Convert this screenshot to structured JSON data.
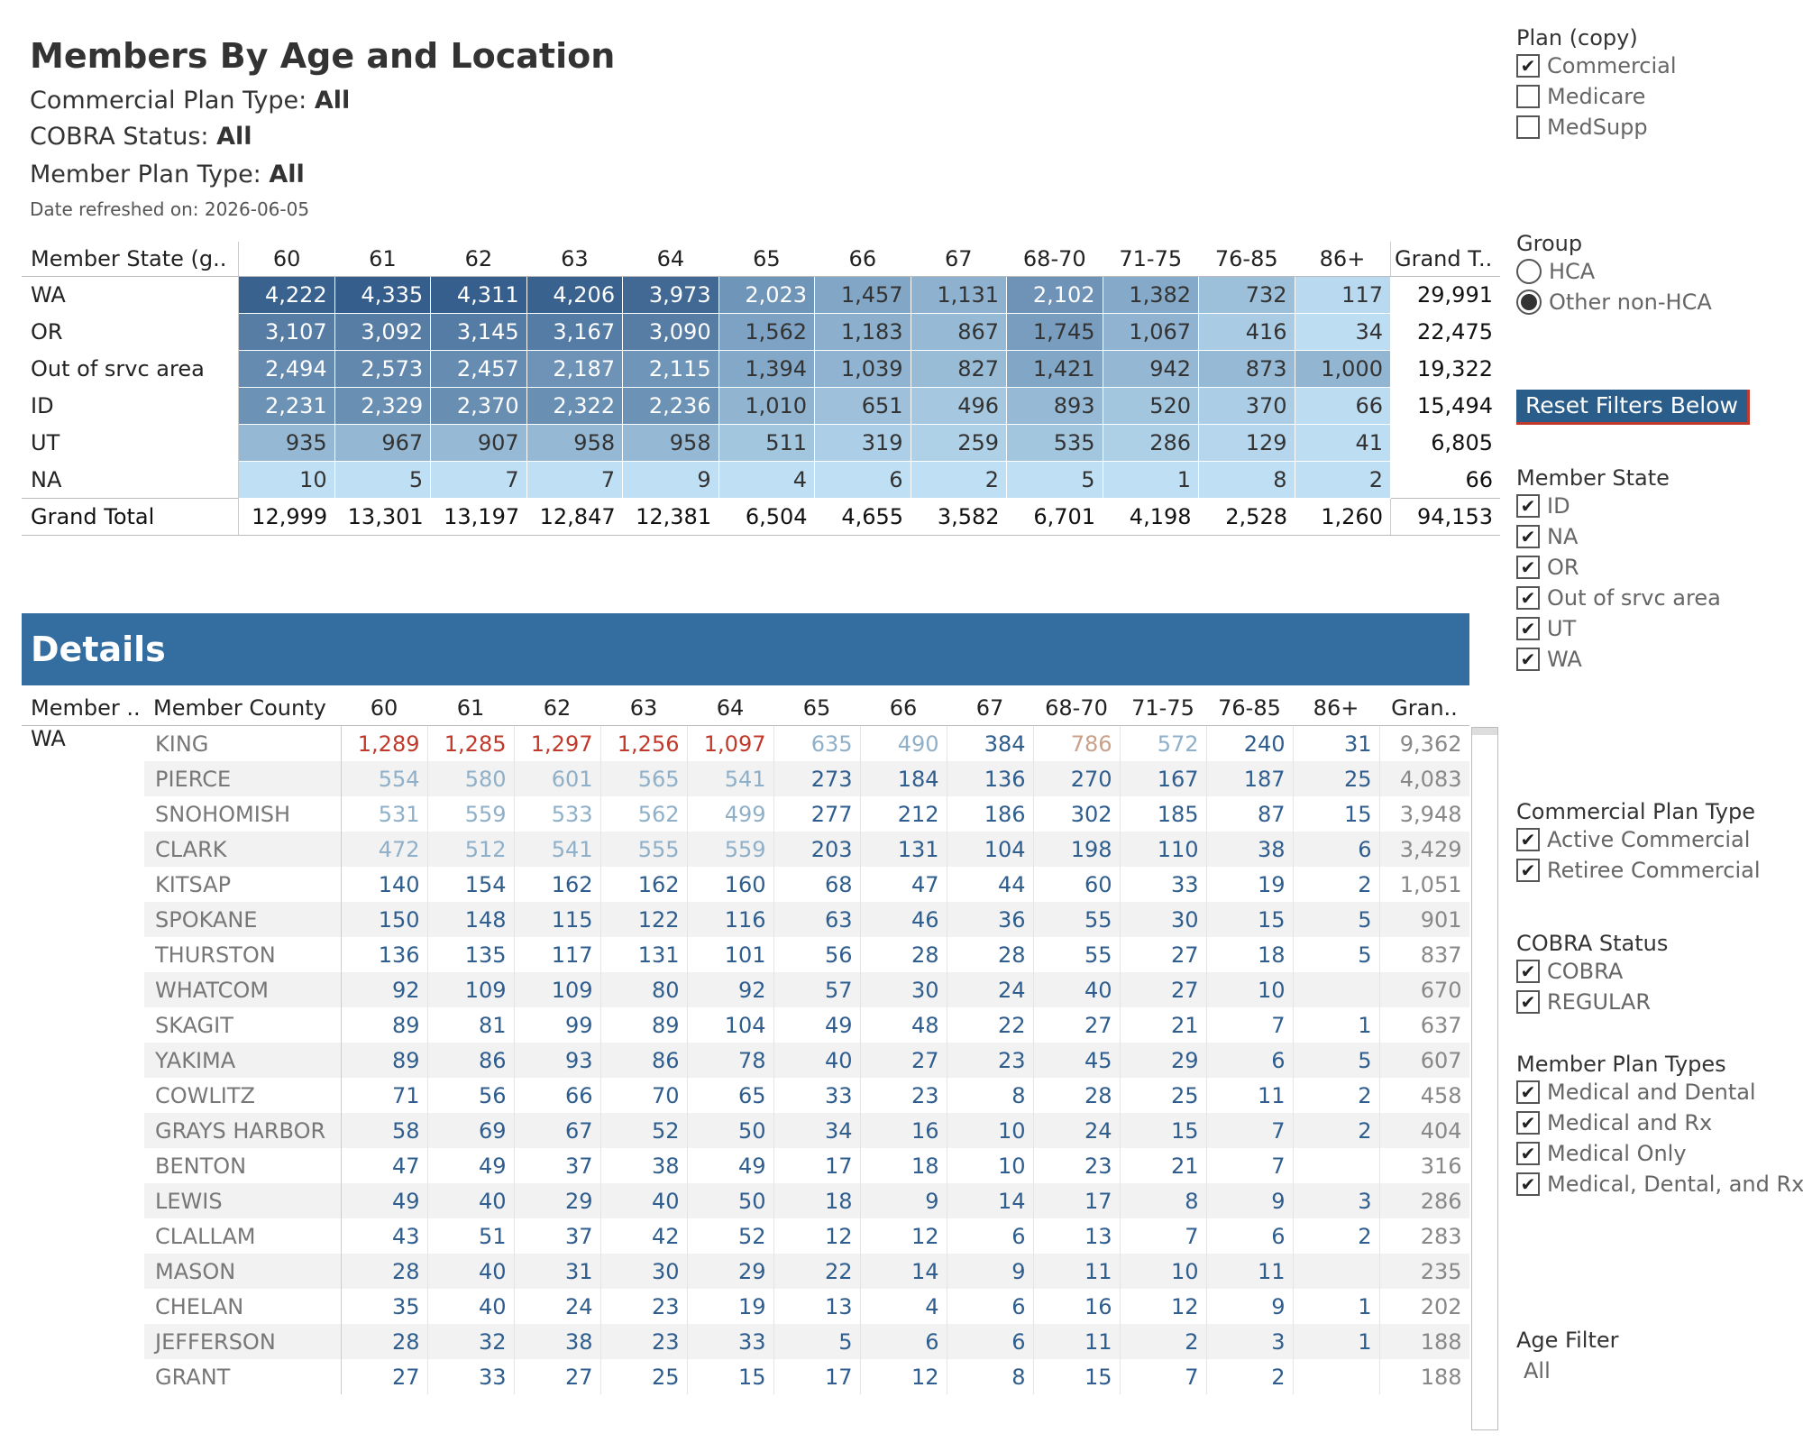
{
  "header": {
    "title": "Members By Age and Location",
    "commercial_plan_label": "Commercial Plan Type:",
    "commercial_plan_value": "All",
    "cobra_label": "COBRA Status:",
    "cobra_value": "All",
    "member_plan_label": "Member Plan Type:",
    "member_plan_value": "All",
    "refreshed": "Date refreshed on: 2026-06-05"
  },
  "colors": {
    "heat_dark": "#2e5786",
    "heat_light": "#bfe0f4",
    "details_header": "#346da0",
    "red_text": "#c0392b",
    "light_blue_text": "#8fb0c8",
    "tan_text": "#c9a08a",
    "blue_text": "#2f5e8e",
    "reset_bg": "#2b5d8a"
  },
  "summary": {
    "row_header": "Member State (g..",
    "columns": [
      "60",
      "61",
      "62",
      "63",
      "64",
      "65",
      "66",
      "67",
      "68-70",
      "71-75",
      "76-85",
      "86+"
    ],
    "grand_total_header": "Grand T..",
    "rows": [
      {
        "label": "WA",
        "values": [
          "4,222",
          "4,335",
          "4,311",
          "4,206",
          "3,973",
          "2,023",
          "1,457",
          "1,131",
          "2,102",
          "1,382",
          "732",
          "117"
        ],
        "total": "29,991",
        "shade": [
          0.92,
          0.95,
          0.94,
          0.92,
          0.87,
          0.55,
          0.42,
          0.34,
          0.56,
          0.4,
          0.24,
          0.05
        ]
      },
      {
        "label": "OR",
        "values": [
          "3,107",
          "3,092",
          "3,145",
          "3,167",
          "3,090",
          "1,562",
          "1,183",
          "867",
          "1,745",
          "1,067",
          "416",
          "34"
        ],
        "total": "22,475",
        "shade": [
          0.72,
          0.72,
          0.73,
          0.73,
          0.72,
          0.45,
          0.36,
          0.28,
          0.49,
          0.33,
          0.15,
          0.02
        ]
      },
      {
        "label": "Out of srvc area",
        "values": [
          "2,494",
          "2,573",
          "2,457",
          "2,187",
          "2,115",
          "1,394",
          "1,039",
          "827",
          "1,421",
          "942",
          "873",
          "1,000"
        ],
        "total": "19,322",
        "shade": [
          0.62,
          0.64,
          0.61,
          0.56,
          0.55,
          0.41,
          0.33,
          0.27,
          0.42,
          0.3,
          0.28,
          0.31
        ]
      },
      {
        "label": "ID",
        "values": [
          "2,231",
          "2,329",
          "2,370",
          "2,322",
          "2,236",
          "1,010",
          "651",
          "496",
          "893",
          "520",
          "370",
          "66"
        ],
        "total": "15,494",
        "shade": [
          0.57,
          0.59,
          0.6,
          0.59,
          0.57,
          0.32,
          0.23,
          0.18,
          0.28,
          0.19,
          0.14,
          0.03
        ]
      },
      {
        "label": "UT",
        "values": [
          "935",
          "967",
          "907",
          "958",
          "958",
          "511",
          "319",
          "259",
          "535",
          "286",
          "129",
          "41"
        ],
        "total": "6,805",
        "shade": [
          0.29,
          0.3,
          0.28,
          0.29,
          0.29,
          0.19,
          0.13,
          0.11,
          0.19,
          0.12,
          0.07,
          0.02
        ]
      },
      {
        "label": "NA",
        "values": [
          "10",
          "5",
          "7",
          "7",
          "9",
          "4",
          "6",
          "2",
          "5",
          "1",
          "8",
          "2"
        ],
        "total": "66",
        "shade": [
          0,
          0,
          0,
          0,
          0,
          0,
          0,
          0,
          0,
          0,
          0,
          0
        ]
      }
    ],
    "grand_total": {
      "label": "Grand Total",
      "values": [
        "12,999",
        "13,301",
        "13,197",
        "12,847",
        "12,381",
        "6,504",
        "4,655",
        "3,582",
        "6,701",
        "4,198",
        "2,528",
        "1,260"
      ],
      "total": "94,153"
    }
  },
  "details": {
    "title": "Details",
    "col_state": "Member ..",
    "col_county": "Member County",
    "columns": [
      "60",
      "61",
      "62",
      "63",
      "64",
      "65",
      "66",
      "67",
      "68-70",
      "71-75",
      "76-85",
      "86+"
    ],
    "grand_total_header": "Gran..",
    "state": "WA",
    "rows": [
      {
        "county": "KING",
        "values": [
          "1,289",
          "1,285",
          "1,297",
          "1,256",
          "1,097",
          "635",
          "490",
          "384",
          "786",
          "572",
          "240",
          "31"
        ],
        "total": "9,362",
        "tone": [
          "r",
          "r",
          "r",
          "r",
          "r",
          "l",
          "l",
          "b",
          "t",
          "l",
          "b",
          "b"
        ]
      },
      {
        "county": "PIERCE",
        "values": [
          "554",
          "580",
          "601",
          "565",
          "541",
          "273",
          "184",
          "136",
          "270",
          "167",
          "187",
          "25"
        ],
        "total": "4,083",
        "tone": [
          "l",
          "l",
          "l",
          "l",
          "l",
          "b",
          "b",
          "b",
          "b",
          "b",
          "b",
          "b"
        ]
      },
      {
        "county": "SNOHOMISH",
        "values": [
          "531",
          "559",
          "533",
          "562",
          "499",
          "277",
          "212",
          "186",
          "302",
          "185",
          "87",
          "15"
        ],
        "total": "3,948",
        "tone": [
          "l",
          "l",
          "l",
          "l",
          "l",
          "b",
          "b",
          "b",
          "b",
          "b",
          "b",
          "b"
        ]
      },
      {
        "county": "CLARK",
        "values": [
          "472",
          "512",
          "541",
          "555",
          "559",
          "203",
          "131",
          "104",
          "198",
          "110",
          "38",
          "6"
        ],
        "total": "3,429",
        "tone": [
          "l",
          "l",
          "l",
          "l",
          "l",
          "b",
          "b",
          "b",
          "b",
          "b",
          "b",
          "b"
        ]
      },
      {
        "county": "KITSAP",
        "values": [
          "140",
          "154",
          "162",
          "162",
          "160",
          "68",
          "47",
          "44",
          "60",
          "33",
          "19",
          "2"
        ],
        "total": "1,051",
        "tone": [
          "b",
          "b",
          "b",
          "b",
          "b",
          "b",
          "b",
          "b",
          "b",
          "b",
          "b",
          "b"
        ]
      },
      {
        "county": "SPOKANE",
        "values": [
          "150",
          "148",
          "115",
          "122",
          "116",
          "63",
          "46",
          "36",
          "55",
          "30",
          "15",
          "5"
        ],
        "total": "901",
        "tone": [
          "b",
          "b",
          "b",
          "b",
          "b",
          "b",
          "b",
          "b",
          "b",
          "b",
          "b",
          "b"
        ]
      },
      {
        "county": "THURSTON",
        "values": [
          "136",
          "135",
          "117",
          "131",
          "101",
          "56",
          "28",
          "28",
          "55",
          "27",
          "18",
          "5"
        ],
        "total": "837",
        "tone": [
          "b",
          "b",
          "b",
          "b",
          "b",
          "b",
          "b",
          "b",
          "b",
          "b",
          "b",
          "b"
        ]
      },
      {
        "county": "WHATCOM",
        "values": [
          "92",
          "109",
          "109",
          "80",
          "92",
          "57",
          "30",
          "24",
          "40",
          "27",
          "10",
          ""
        ],
        "total": "670",
        "tone": [
          "b",
          "b",
          "b",
          "b",
          "b",
          "b",
          "b",
          "b",
          "b",
          "b",
          "b",
          "b"
        ]
      },
      {
        "county": "SKAGIT",
        "values": [
          "89",
          "81",
          "99",
          "89",
          "104",
          "49",
          "48",
          "22",
          "27",
          "21",
          "7",
          "1"
        ],
        "total": "637",
        "tone": [
          "b",
          "b",
          "b",
          "b",
          "b",
          "b",
          "b",
          "b",
          "b",
          "b",
          "b",
          "b"
        ]
      },
      {
        "county": "YAKIMA",
        "values": [
          "89",
          "86",
          "93",
          "86",
          "78",
          "40",
          "27",
          "23",
          "45",
          "29",
          "6",
          "5"
        ],
        "total": "607",
        "tone": [
          "b",
          "b",
          "b",
          "b",
          "b",
          "b",
          "b",
          "b",
          "b",
          "b",
          "b",
          "b"
        ]
      },
      {
        "county": "COWLITZ",
        "values": [
          "71",
          "56",
          "66",
          "70",
          "65",
          "33",
          "23",
          "8",
          "28",
          "25",
          "11",
          "2"
        ],
        "total": "458",
        "tone": [
          "b",
          "b",
          "b",
          "b",
          "b",
          "b",
          "b",
          "b",
          "b",
          "b",
          "b",
          "b"
        ]
      },
      {
        "county": "GRAYS HARBOR",
        "values": [
          "58",
          "69",
          "67",
          "52",
          "50",
          "34",
          "16",
          "10",
          "24",
          "15",
          "7",
          "2"
        ],
        "total": "404",
        "tone": [
          "b",
          "b",
          "b",
          "b",
          "b",
          "b",
          "b",
          "b",
          "b",
          "b",
          "b",
          "b"
        ]
      },
      {
        "county": "BENTON",
        "values": [
          "47",
          "49",
          "37",
          "38",
          "49",
          "17",
          "18",
          "10",
          "23",
          "21",
          "7",
          ""
        ],
        "total": "316",
        "tone": [
          "b",
          "b",
          "b",
          "b",
          "b",
          "b",
          "b",
          "b",
          "b",
          "b",
          "b",
          "b"
        ]
      },
      {
        "county": "LEWIS",
        "values": [
          "49",
          "40",
          "29",
          "40",
          "50",
          "18",
          "9",
          "14",
          "17",
          "8",
          "9",
          "3"
        ],
        "total": "286",
        "tone": [
          "b",
          "b",
          "b",
          "b",
          "b",
          "b",
          "b",
          "b",
          "b",
          "b",
          "b",
          "b"
        ]
      },
      {
        "county": "CLALLAM",
        "values": [
          "43",
          "51",
          "37",
          "42",
          "52",
          "12",
          "12",
          "6",
          "13",
          "7",
          "6",
          "2"
        ],
        "total": "283",
        "tone": [
          "b",
          "b",
          "b",
          "b",
          "b",
          "b",
          "b",
          "b",
          "b",
          "b",
          "b",
          "b"
        ]
      },
      {
        "county": "MASON",
        "values": [
          "28",
          "40",
          "31",
          "30",
          "29",
          "22",
          "14",
          "9",
          "11",
          "10",
          "11",
          ""
        ],
        "total": "235",
        "tone": [
          "b",
          "b",
          "b",
          "b",
          "b",
          "b",
          "b",
          "b",
          "b",
          "b",
          "b",
          "b"
        ]
      },
      {
        "county": "CHELAN",
        "values": [
          "35",
          "40",
          "24",
          "23",
          "19",
          "13",
          "4",
          "6",
          "16",
          "12",
          "9",
          "1"
        ],
        "total": "202",
        "tone": [
          "b",
          "b",
          "b",
          "b",
          "b",
          "b",
          "b",
          "b",
          "b",
          "b",
          "b",
          "b"
        ]
      },
      {
        "county": "JEFFERSON",
        "values": [
          "28",
          "32",
          "38",
          "23",
          "33",
          "5",
          "6",
          "6",
          "11",
          "2",
          "3",
          "1"
        ],
        "total": "188",
        "tone": [
          "b",
          "b",
          "b",
          "b",
          "b",
          "b",
          "b",
          "b",
          "b",
          "b",
          "b",
          "b"
        ]
      },
      {
        "county": "GRANT",
        "values": [
          "27",
          "33",
          "27",
          "25",
          "15",
          "17",
          "12",
          "8",
          "15",
          "7",
          "2",
          ""
        ],
        "total": "188",
        "tone": [
          "b",
          "b",
          "b",
          "b",
          "b",
          "b",
          "b",
          "b",
          "b",
          "b",
          "b",
          "b"
        ]
      }
    ]
  },
  "filters": {
    "plan": {
      "title": "Plan (copy)",
      "items": [
        {
          "label": "Commercial",
          "checked": true
        },
        {
          "label": "Medicare",
          "checked": false
        },
        {
          "label": "MedSupp",
          "checked": false
        }
      ]
    },
    "group": {
      "title": "Group",
      "items": [
        {
          "label": "HCA",
          "selected": false
        },
        {
          "label": "Other non-HCA",
          "selected": true
        }
      ]
    },
    "reset_label": "Reset Filters Below",
    "member_state": {
      "title": "Member State",
      "items": [
        {
          "label": "ID",
          "checked": true
        },
        {
          "label": "NA",
          "checked": true
        },
        {
          "label": "OR",
          "checked": true
        },
        {
          "label": "Out of srvc area",
          "checked": true
        },
        {
          "label": "UT",
          "checked": true
        },
        {
          "label": "WA",
          "checked": true
        }
      ]
    },
    "commercial_plan_type": {
      "title": "Commercial Plan Type",
      "items": [
        {
          "label": "Active Commercial",
          "checked": true
        },
        {
          "label": "Retiree Commercial",
          "checked": true
        }
      ]
    },
    "cobra_status": {
      "title": "COBRA Status",
      "items": [
        {
          "label": "COBRA",
          "checked": true
        },
        {
          "label": "REGULAR",
          "checked": true
        }
      ]
    },
    "member_plan_types": {
      "title": "Member Plan Types",
      "items": [
        {
          "label": "Medical and Dental",
          "checked": true
        },
        {
          "label": "Medical and Rx",
          "checked": true
        },
        {
          "label": "Medical Only",
          "checked": true
        },
        {
          "label": "Medical, Dental, and Rx",
          "checked": true
        }
      ]
    },
    "age_filter": {
      "title": "Age Filter",
      "value": "All"
    }
  }
}
